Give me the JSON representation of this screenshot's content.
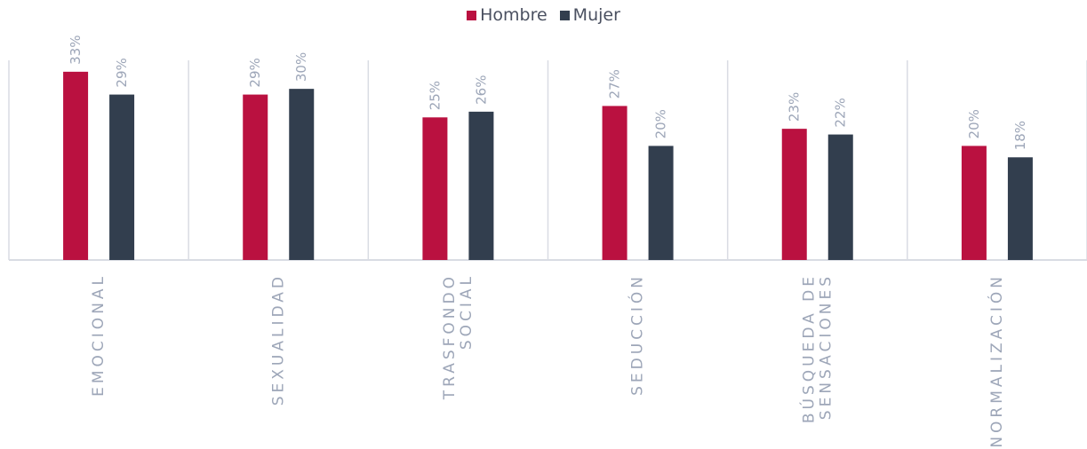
{
  "chart_data": {
    "type": "bar",
    "categories": [
      [
        "EMOCIONAL"
      ],
      [
        "SEXUALIDAD"
      ],
      [
        "TRASFONDO",
        "SOCIAL"
      ],
      [
        "SEDUCCIÓN"
      ],
      [
        "BÚSQUEDA DE",
        "SENSACIONES"
      ],
      [
        "NORMALIZACIÓN"
      ]
    ],
    "series": [
      {
        "name": "Hombre",
        "color": "#BA1140",
        "values": [
          33,
          29,
          25,
          27,
          23,
          20
        ],
        "labels": [
          "33%",
          "29%",
          "25%",
          "27%",
          "23%",
          "20%"
        ]
      },
      {
        "name": "Mujer",
        "color": "#323E4E",
        "values": [
          29,
          30,
          26,
          20,
          22,
          18
        ],
        "labels": [
          "29%",
          "30%",
          "26%",
          "20%",
          "22%",
          "18%"
        ]
      }
    ],
    "ylim": [
      0,
      35
    ],
    "grid": false,
    "legend_position": "top-center",
    "label_color": "#9DA6B8",
    "axis_color": "#D9DCE3"
  }
}
